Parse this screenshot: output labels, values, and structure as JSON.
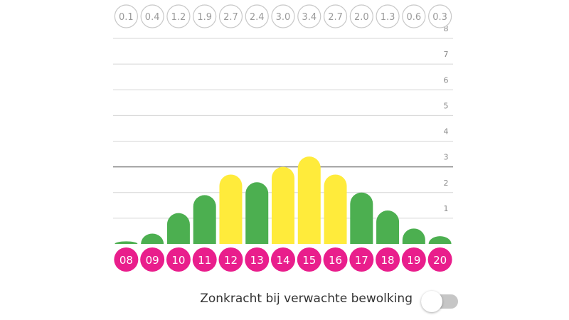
{
  "chart_data": {
    "type": "bar",
    "categories": [
      "08",
      "09",
      "10",
      "11",
      "12",
      "13",
      "14",
      "15",
      "16",
      "17",
      "18",
      "19",
      "20"
    ],
    "values": [
      0.1,
      0.4,
      1.2,
      1.9,
      2.7,
      2.4,
      3.0,
      3.4,
      2.7,
      2.0,
      1.3,
      0.6,
      0.3
    ],
    "value_labels": [
      "0.1",
      "0.4",
      "1.2",
      "1.9",
      "2.7",
      "2.4",
      "3.0",
      "3.4",
      "2.7",
      "2.0",
      "1.3",
      "0.6",
      "0.3"
    ],
    "bar_colors": [
      "#4caf50",
      "#4caf50",
      "#4caf50",
      "#4caf50",
      "#ffeb3b",
      "#4caf50",
      "#ffeb3b",
      "#ffeb3b",
      "#ffeb3b",
      "#4caf50",
      "#4caf50",
      "#4caf50",
      "#4caf50"
    ],
    "ylim": [
      0,
      8
    ],
    "yticks": [
      "1",
      "2",
      "3",
      "4",
      "5",
      "6",
      "7",
      "8"
    ],
    "grid": true,
    "emphasized_gridline": 3,
    "legend": "none"
  },
  "colors": {
    "green": "#4caf50",
    "yellow": "#ffeb3b",
    "hour_badge": "#e91e8c",
    "grid": "#d6d6d6",
    "grid_strong": "#888888",
    "badge_outline": "#c8c8c8",
    "badge_text": "#9a9a9a"
  },
  "toggle": {
    "label": "Zonkracht bij verwachte bewolking",
    "on": false
  }
}
